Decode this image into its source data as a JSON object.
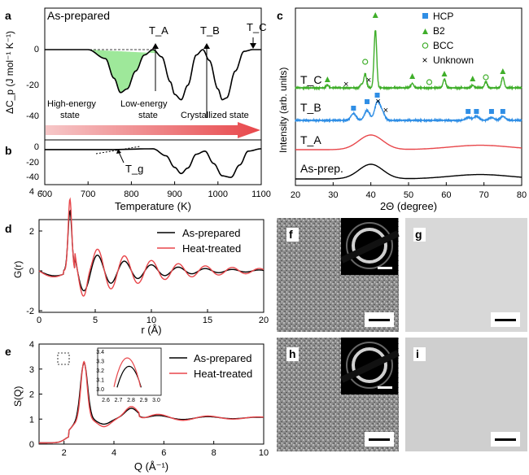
{
  "panels": {
    "a": {
      "letter": "a",
      "label": "As-prepared",
      "ylabel": "ΔC_p (J mol⁻¹ K⁻¹)",
      "yticks": [
        "0",
        "-20",
        "-40"
      ],
      "markers": [
        "T_A",
        "T_B",
        "T_C"
      ],
      "states": {
        "high_1": "High-energy",
        "high_2": "state",
        "low_1": "Low-energy",
        "low_2": "state",
        "cryst": "Crystallized state"
      }
    },
    "b": {
      "letter": "b",
      "yticks": [
        "0",
        "-20",
        "-40"
      ],
      "tg": "T_g"
    },
    "ab_x": {
      "xlabel": "Temperature (K)",
      "xticks": [
        "600",
        "700",
        "800",
        "900",
        "1000",
        "1100"
      ]
    },
    "c": {
      "letter": "c",
      "ylabel": "Intensity (arb. units)",
      "xlabel": "2Θ (degree)",
      "xticks": [
        "20",
        "30",
        "40",
        "50",
        "60",
        "70",
        "80"
      ],
      "curve_labels": [
        "T_C",
        "T_B",
        "T_A",
        "As-prep."
      ],
      "legend": [
        {
          "label": "HCP",
          "color": "#2f8ee5",
          "marker": "square"
        },
        {
          "label": "B2",
          "color": "#3fae2a",
          "marker": "triangle"
        },
        {
          "label": "BCC",
          "color": "#3fae2a",
          "marker": "circle-open"
        },
        {
          "label": "Unknown",
          "color": "#000000",
          "marker": "cross"
        }
      ]
    },
    "d": {
      "letter": "d",
      "ylabel": "G(r)",
      "xlabel": "r (Å)",
      "xticks": [
        "0",
        "5",
        "10",
        "15",
        "20"
      ],
      "yticks": [
        "4",
        "2",
        "0",
        "-2"
      ],
      "legend": [
        "As-prepared",
        "Heat-treated"
      ]
    },
    "e": {
      "letter": "e",
      "ylabel": "S(Q)",
      "xlabel": "Q (Å⁻¹)",
      "xticks": [
        "2",
        "4",
        "6",
        "8",
        "10"
      ],
      "yticks": [
        "0",
        "1",
        "2",
        "3",
        "4"
      ],
      "legend": [
        "As-prepared",
        "Heat-treated"
      ],
      "inset": {
        "xticks": [
          "2.6",
          "2.7",
          "2.8",
          "2.9",
          "3.0"
        ],
        "yticks": [
          "3.4",
          "3.3",
          "3.2",
          "3.1",
          "3.0"
        ]
      }
    },
    "tem": {
      "letters": [
        "f",
        "g",
        "h",
        "i"
      ]
    }
  },
  "colors": {
    "as_prepared": "#000000",
    "heat_treated": "#e8474b",
    "T_A": "#e8474b",
    "T_B": "#2f8ee5",
    "T_C": "#3fae2a",
    "peak_fill": "#9ee89a"
  },
  "chart_data": [
    {
      "type": "line",
      "panel": "a",
      "title": "As-prepared",
      "xlabel": "Temperature (K)",
      "ylabel": "ΔC_p (J mol⁻¹ K⁻¹)",
      "xlim": [
        600,
        1100
      ],
      "ylim": [
        -48,
        10
      ],
      "series": [
        {
          "values_x": [
            700,
            740,
            760,
            775,
            790,
            810,
            830,
            850,
            870,
            890,
            900,
            915,
            930,
            950,
            965,
            980,
            1000,
            1010,
            1020,
            1040,
            1060,
            1080
          ],
          "values_y": [
            0,
            -5,
            -16,
            -24,
            -22,
            -12,
            -3,
            0,
            -4,
            -18,
            -25,
            -28,
            -20,
            -3,
            0,
            -6,
            -22,
            -28,
            -27,
            -12,
            -1,
            0
          ]
        }
      ],
      "markers": {
        "T_A": 860,
        "T_B": 965,
        "T_C": 1080
      }
    },
    {
      "type": "line",
      "panel": "b",
      "xlabel": "Temperature (K)",
      "xlim": [
        600,
        1100
      ],
      "ylim": [
        -45,
        8
      ],
      "series": [
        {
          "values_x": [
            600,
            750,
            850,
            880,
            900,
            915,
            930,
            950,
            970,
            990,
            1010,
            1030,
            1050,
            1070,
            1100
          ],
          "values_y": [
            -2,
            -2,
            -1,
            -10,
            -25,
            -33,
            -26,
            -8,
            -4,
            -20,
            -36,
            -38,
            -22,
            -4,
            -1
          ]
        }
      ],
      "tg": 800
    },
    {
      "type": "line",
      "panel": "c",
      "xlabel": "2Θ (degree)",
      "ylabel": "Intensity (arb. units)",
      "xlim": [
        20,
        80
      ],
      "series": [
        {
          "name": "As-prep.",
          "peaks": [
            [
              40,
              1.0
            ],
            [
              69,
              0.3
            ]
          ]
        },
        {
          "name": "T_A",
          "peaks": [
            [
              40,
              1.0
            ],
            [
              69,
              0.3
            ]
          ]
        },
        {
          "name": "T_B",
          "peaks": [
            [
              35.4,
              0.7
            ],
            [
              39,
              1.0
            ],
            [
              41.7,
              1.8
            ],
            [
              43,
              0.8
            ],
            [
              65.8,
              0.3
            ],
            [
              68,
              0.4
            ],
            [
              72,
              0.3
            ],
            [
              75,
              0.4
            ]
          ]
        },
        {
          "name": "T_C",
          "peaks": [
            [
              28.5,
              0.3
            ],
            [
              37.5,
              0.4
            ],
            [
              38.5,
              1.6
            ],
            [
              41.2,
              6.5
            ],
            [
              51,
              0.5
            ],
            [
              59.5,
              1.0
            ],
            [
              67,
              0.3
            ],
            [
              70.5,
              0.7
            ],
            [
              75,
              1.2
            ]
          ]
        }
      ]
    },
    {
      "type": "line",
      "panel": "d",
      "xlabel": "r (Å)",
      "ylabel": "G(r)",
      "xlim": [
        0,
        20
      ],
      "ylim": [
        -2.8,
        4
      ],
      "series": [
        {
          "name": "As-prepared",
          "max": 3.0
        },
        {
          "name": "Heat-treated",
          "max": 3.6
        }
      ]
    },
    {
      "type": "line",
      "panel": "e",
      "xlabel": "Q (Å⁻¹)",
      "ylabel": "S(Q)",
      "xlim": [
        1,
        10
      ],
      "ylim": [
        0,
        4
      ],
      "series": [
        {
          "name": "As-prepared",
          "peak": [
            2.8,
            3.25
          ]
        },
        {
          "name": "Heat-treated",
          "peak": [
            2.78,
            3.3
          ]
        }
      ]
    }
  ]
}
